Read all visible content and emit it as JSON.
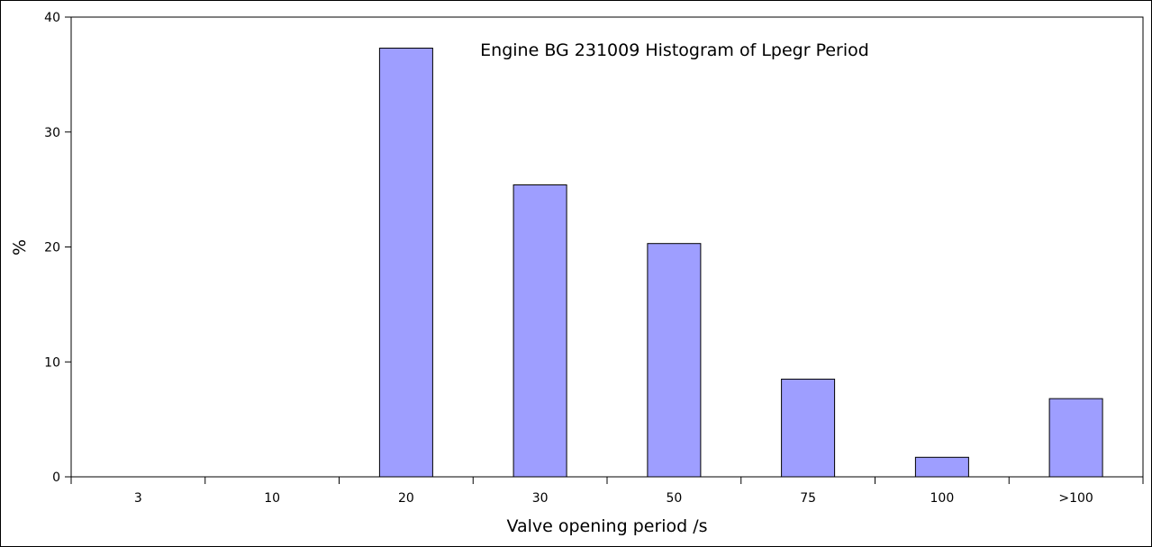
{
  "chart_data": {
    "type": "bar",
    "title": "Engine BG 231009  Histogram of Lpegr Period",
    "xlabel": "Valve opening period /s",
    "ylabel": "%",
    "categories": [
      "3",
      "10",
      "20",
      "30",
      "50",
      "75",
      "100",
      ">100"
    ],
    "values": [
      0,
      0,
      37.3,
      25.4,
      20.3,
      8.5,
      1.7,
      6.8
    ],
    "ylim": [
      0,
      40
    ],
    "yticks": [
      0,
      10,
      20,
      30,
      40
    ],
    "grid": false,
    "legend": "none",
    "bar_color": "#9e9eff",
    "bar_edge_color": "#000000"
  }
}
